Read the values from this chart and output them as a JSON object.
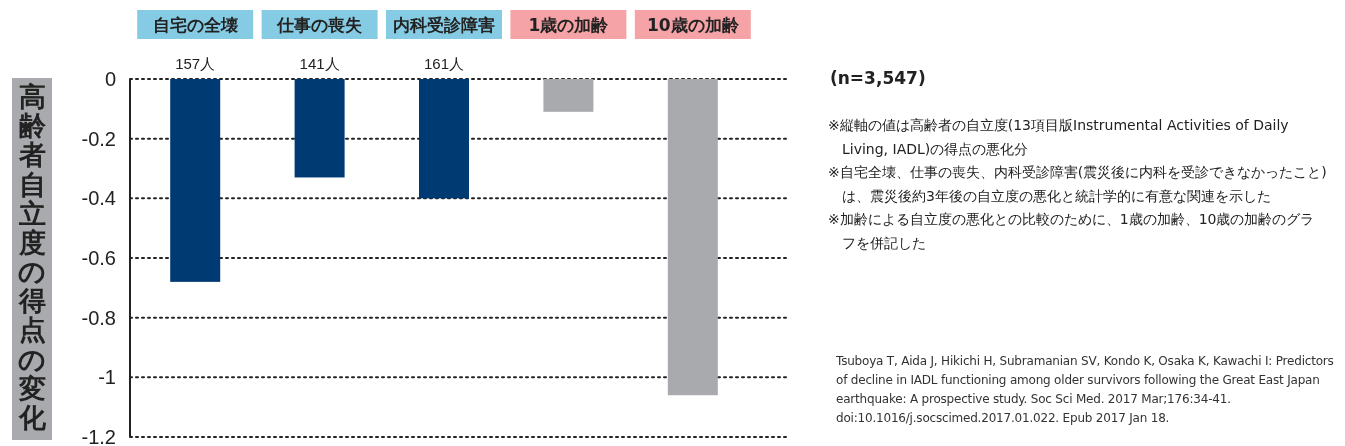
{
  "chart_data": {
    "type": "bar",
    "ylabel": "高齢者自立度の得点の変化",
    "categories": [
      "自宅の全壊",
      "仕事の喪失",
      "内科受診障害",
      "1歳の加齢",
      "10歳の加齢"
    ],
    "values": [
      -0.68,
      -0.33,
      -0.4,
      -0.11,
      -1.06
    ],
    "colors": [
      "#003a73",
      "#003a73",
      "#003a73",
      "#a9aaad",
      "#a9aaad"
    ],
    "ylim": [
      -1.2,
      0
    ],
    "yticks": [
      0,
      -0.2,
      -0.4,
      -0.6,
      -0.8,
      -1,
      -1.2
    ],
    "grid": "y",
    "annotations": [
      {
        "text": "157人",
        "x": "自宅の全壊",
        "y": 0
      },
      {
        "text": "141人",
        "x": "仕事の喪失",
        "y": 0
      },
      {
        "text": "161人",
        "x": "内科受診障害",
        "y": 0
      },
      "(n=3,547)",
      "※縦軸の値は高齢者の自立度(13項目版Instrumental Activities of Daily Living, IADL)の得点の悪化分",
      "※自宅全壊、仕事の喪失、内科受診障害(震災後に内科を受診できなかったこと)は、震災後約3年後の自立度の悪化と統計学的に有意な関連を示した",
      "※加齢による自立度の悪化との比較のために、1歳の加齢、10歳の加齢のグラフを併記した",
      "Tsuboya T, Aida J, Hikichi H, Subramanian SV, Kondo K, Osaka K, Kawachi I: Predictors of decline in IADL functioning among older survivors following the Great East Japan earthquake: A prospective study. Soc Sci Med. 2017 Mar;176:34-41. doi:10.1016/j.socscimed.2017.01.022. Epub 2017 Jan 18."
    ]
  }
}
